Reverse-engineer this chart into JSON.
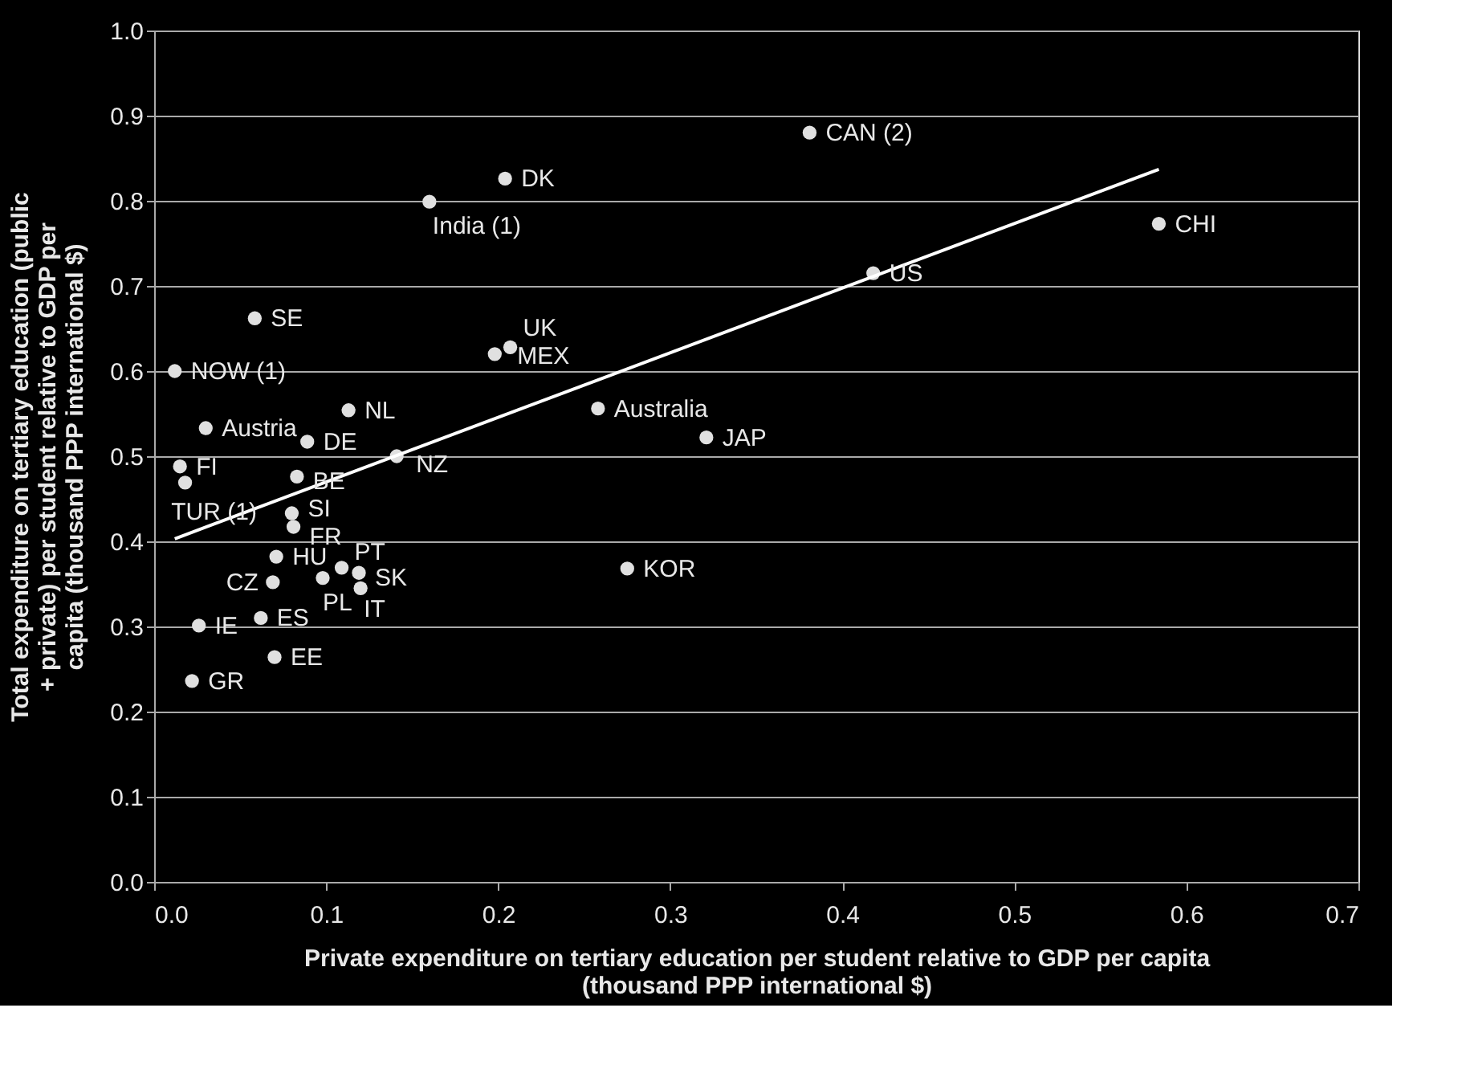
{
  "chart_data": {
    "type": "scatter",
    "xlabel": "Private expenditure on tertiary education per student relative to GDP per capita (thousand PPP international $)",
    "ylabel": "Total expenditure on tertiary education (public + private) per student relative to GDP per capita (thousand PPP international $)",
    "xlim": [
      0,
      0.7
    ],
    "xticks": [
      {
        "value": 0,
        "label": "0.0"
      },
      0.1,
      0.2,
      0.3,
      0.4,
      0.5,
      0.6,
      0.7
    ],
    "ylim": [
      0,
      1
    ],
    "yticks": [
      {
        "value": 0,
        "label": "0.0"
      },
      0.1,
      0.2,
      0.3,
      0.4,
      0.5,
      0.6,
      0.7,
      0.8,
      0.9,
      {
        "value": 1,
        "label": "1.0"
      }
    ],
    "grid": "y",
    "series": [
      {
        "type": "scatter",
        "color": "#e0e0e0",
        "marker": "circle",
        "x": [
          0.381,
          0.204,
          0.16,
          0.418,
          0.584,
          0.207,
          0.198,
          0.258,
          0.321,
          0.275,
          0.0585,
          0.012,
          0.03,
          0.113,
          0.089,
          0.015,
          0.018,
          0.083,
          0.141,
          0.08,
          0.081,
          0.071,
          0.109,
          0.119,
          0.098,
          0.12,
          0.069,
          0.062,
          0.026,
          0.07,
          0.022
        ],
        "values": [
          0.88,
          0.826,
          0.799,
          0.715,
          0.773,
          0.628,
          0.62,
          0.556,
          0.522,
          0.368,
          0.662,
          0.6,
          0.533,
          0.554,
          0.517,
          0.488,
          0.469,
          0.476,
          0.5,
          0.433,
          0.417,
          0.382,
          0.369,
          0.363,
          0.357,
          0.345,
          0.352,
          0.31,
          0.301,
          0.264,
          0.236
        ]
      },
      {
        "type": "line",
        "color": "#ffffff",
        "marker": "none",
        "line_style": "solid",
        "x": [
          0.012,
          0.584
        ],
        "values": [
          0.403,
          0.837
        ]
      }
    ],
    "annotations": [
      {
        "text": "CAN (2)",
        "x": 0.381,
        "y": 0.88
      },
      {
        "text": "DK",
        "x": 0.204,
        "y": 0.826
      },
      {
        "text": "India (1)",
        "x": 0.16,
        "y": 0.799
      },
      {
        "text": "US",
        "x": 0.418,
        "y": 0.715
      },
      {
        "text": "CHI",
        "x": 0.584,
        "y": 0.773
      },
      {
        "text": "UK",
        "x": 0.207,
        "y": 0.628
      },
      {
        "text": "MEX",
        "x": 0.198,
        "y": 0.62
      },
      {
        "text": "Australia",
        "x": 0.258,
        "y": 0.556
      },
      {
        "text": "JAP",
        "x": 0.321,
        "y": 0.522
      },
      {
        "text": "KOR",
        "x": 0.275,
        "y": 0.368
      },
      {
        "text": "SE",
        "x": 0.0585,
        "y": 0.662
      },
      {
        "text": "NOW (1)",
        "x": 0.012,
        "y": 0.6
      },
      {
        "text": "Austria",
        "x": 0.03,
        "y": 0.533
      },
      {
        "text": "NL",
        "x": 0.113,
        "y": 0.554
      },
      {
        "text": "DE",
        "x": 0.089,
        "y": 0.517
      },
      {
        "text": "FI",
        "x": 0.015,
        "y": 0.488
      },
      {
        "text": "TUR (1)",
        "x": 0.018,
        "y": 0.469
      },
      {
        "text": "BE",
        "x": 0.083,
        "y": 0.476
      },
      {
        "text": "NZ",
        "x": 0.141,
        "y": 0.5
      },
      {
        "text": "SI",
        "x": 0.08,
        "y": 0.433
      },
      {
        "text": "FR",
        "x": 0.081,
        "y": 0.417
      },
      {
        "text": "HU",
        "x": 0.071,
        "y": 0.382
      },
      {
        "text": "PT",
        "x": 0.109,
        "y": 0.369
      },
      {
        "text": "SK",
        "x": 0.119,
        "y": 0.363
      },
      {
        "text": "PL",
        "x": 0.098,
        "y": 0.357
      },
      {
        "text": "IT",
        "x": 0.12,
        "y": 0.345
      },
      {
        "text": "CZ",
        "x": 0.069,
        "y": 0.352
      },
      {
        "text": "ES",
        "x": 0.062,
        "y": 0.31
      },
      {
        "text": "IE",
        "x": 0.026,
        "y": 0.301
      },
      {
        "text": "EE",
        "x": 0.07,
        "y": 0.264
      },
      {
        "text": "GR",
        "x": 0.022,
        "y": 0.236
      }
    ]
  }
}
